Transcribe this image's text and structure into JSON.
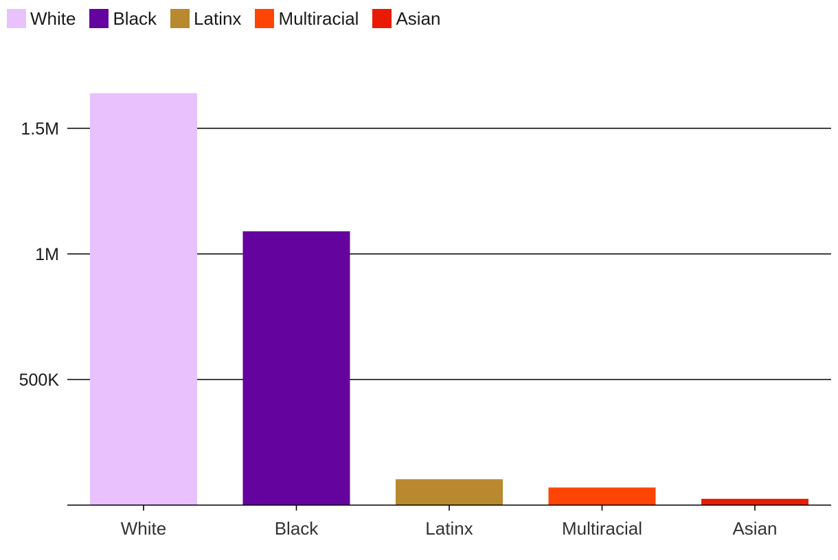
{
  "chart_data": {
    "type": "bar",
    "title": "",
    "xlabel": "",
    "ylabel": "",
    "categories": [
      "White",
      "Black",
      "Latinx",
      "Multiracial",
      "Asian"
    ],
    "values": [
      1640000,
      1090000,
      103000,
      70000,
      25000
    ],
    "colors": [
      "#e8c1fd",
      "#65039e",
      "#b8892e",
      "#ff4505",
      "#ea1b05"
    ],
    "ylim": [
      0,
      1700000
    ],
    "yticks": [
      {
        "value": 500000,
        "label": "500K"
      },
      {
        "value": 1000000,
        "label": "1M"
      },
      {
        "value": 1500000,
        "label": "1.5M"
      }
    ],
    "grid": true,
    "legend": {
      "position": "top-left",
      "items": [
        {
          "label": "White",
          "color": "#e8c1fd"
        },
        {
          "label": "Black",
          "color": "#65039e"
        },
        {
          "label": "Latinx",
          "color": "#b8892e"
        },
        {
          "label": "Multiracial",
          "color": "#ff4505"
        },
        {
          "label": "Asian",
          "color": "#ea1b05"
        }
      ]
    }
  }
}
